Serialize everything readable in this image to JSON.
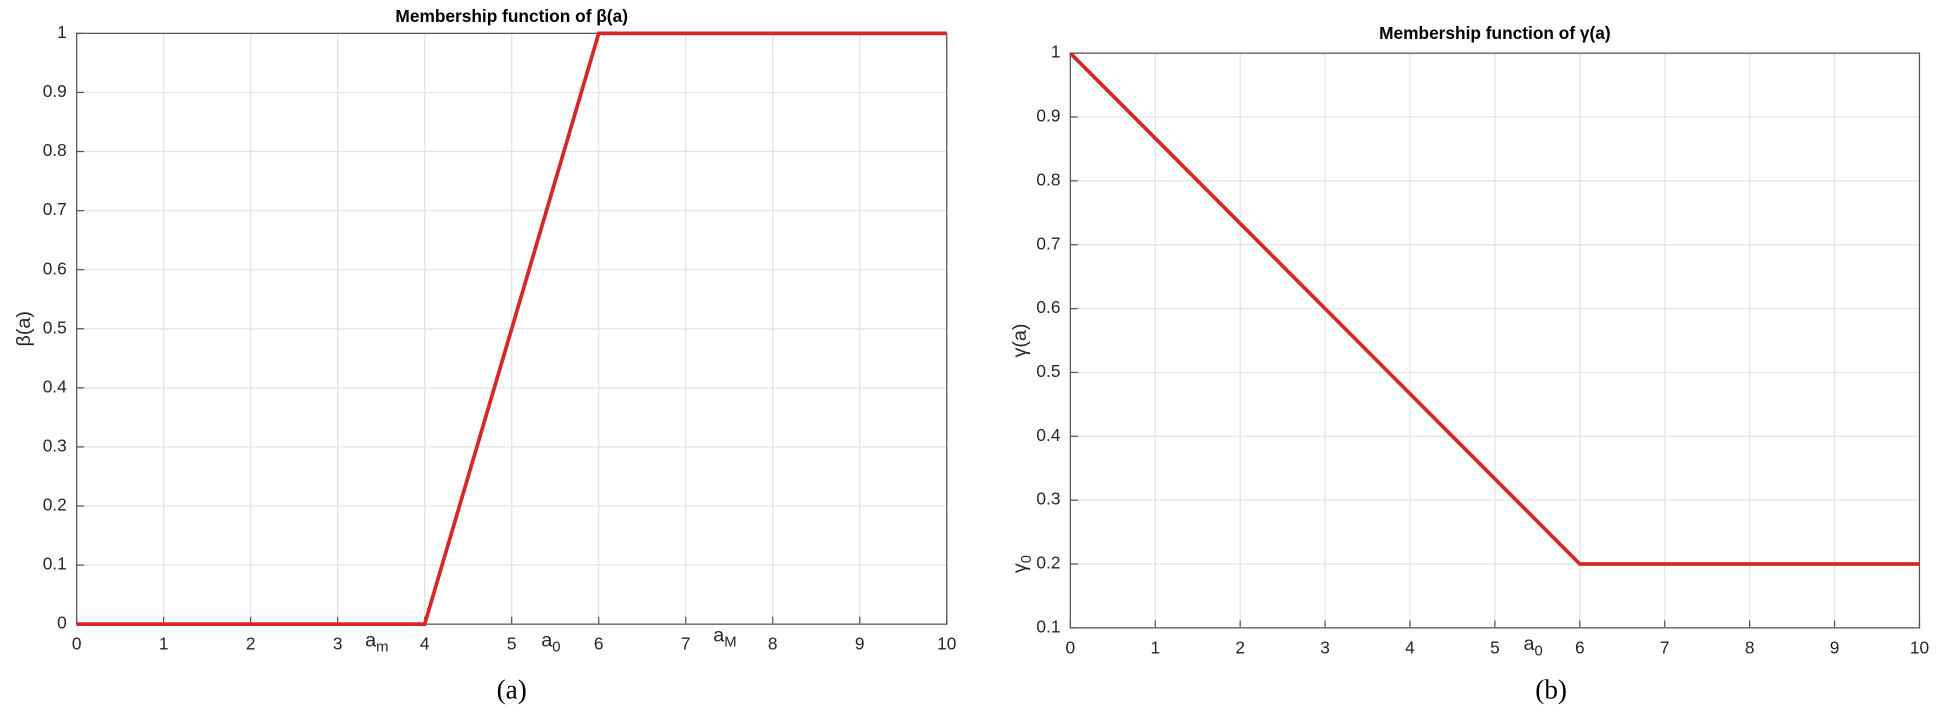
{
  "chart_data": [
    {
      "type": "line",
      "title": "Membership function of β(a)",
      "y_label": "β(a)",
      "caption": "(a)",
      "x": [
        0,
        4,
        6,
        10
      ],
      "series": [
        {
          "name": "β(a)",
          "color": "#d62728",
          "values": [
            0,
            0,
            1,
            1
          ]
        }
      ],
      "xlim": [
        0,
        10
      ],
      "xticks": [
        0,
        1,
        2,
        3,
        4,
        5,
        6,
        7,
        8,
        9,
        10
      ],
      "ylim": [
        0,
        1
      ],
      "yticks": [
        0,
        0.1,
        0.2,
        0.3,
        0.4,
        0.5,
        0.6,
        0.7,
        0.8,
        0.9,
        1
      ],
      "grid": true,
      "annotations": [
        {
          "text": "a",
          "subscript": "m"
        },
        {
          "text": "a",
          "subscript": "0"
        },
        {
          "text": "a",
          "subscript": "M"
        }
      ]
    },
    {
      "type": "line",
      "title": "Membership function of γ(a)",
      "y_label": "γ(a)",
      "caption": "(b)",
      "x": [
        0,
        6,
        10
      ],
      "series": [
        {
          "name": "γ(a)",
          "color": "#d62728",
          "values": [
            1,
            0.2,
            0.2
          ]
        }
      ],
      "xlim": [
        0,
        10
      ],
      "xticks": [
        0,
        1,
        2,
        3,
        4,
        5,
        6,
        7,
        8,
        9,
        10
      ],
      "ylim": [
        0.1,
        1
      ],
      "yticks": [
        0.1,
        0.2,
        0.3,
        0.4,
        0.5,
        0.6,
        0.7,
        0.8,
        0.9,
        1
      ],
      "grid": true,
      "annotations": [
        {
          "text": "a",
          "subscript": "0"
        },
        {
          "text": "γ",
          "subscript": "0"
        }
      ]
    }
  ]
}
